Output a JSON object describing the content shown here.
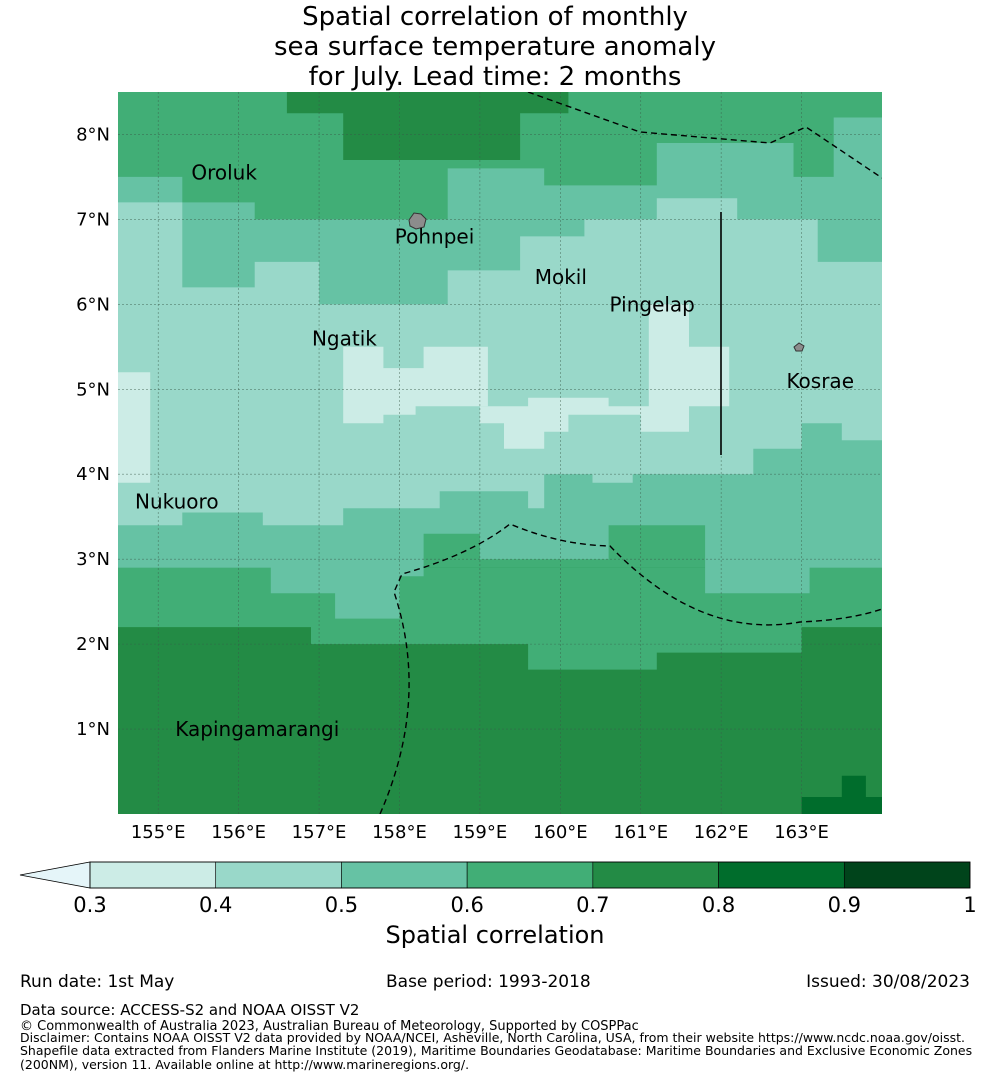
{
  "title_lines": [
    "Spatial correlation of monthly",
    "sea surface temperature anomaly",
    "for July. Lead time: 2 months"
  ],
  "map": {
    "lon_range": [
      154.5,
      164.0
    ],
    "lat_range": [
      0.0,
      8.5
    ],
    "lat_ticks": [
      {
        "v": 8,
        "label": "8°N"
      },
      {
        "v": 7,
        "label": "7°N"
      },
      {
        "v": 6,
        "label": "6°N"
      },
      {
        "v": 5,
        "label": "5°N"
      },
      {
        "v": 4,
        "label": "4°N"
      },
      {
        "v": 3,
        "label": "3°N"
      },
      {
        "v": 2,
        "label": "2°N"
      },
      {
        "v": 1,
        "label": "1°N"
      }
    ],
    "lon_ticks": [
      {
        "v": 155,
        "label": "155°E"
      },
      {
        "v": 156,
        "label": "156°E"
      },
      {
        "v": 157,
        "label": "157°E"
      },
      {
        "v": 158,
        "label": "158°E"
      },
      {
        "v": 159,
        "label": "159°E"
      },
      {
        "v": 160,
        "label": "160°E"
      },
      {
        "v": 161,
        "label": "161°E"
      },
      {
        "v": 162,
        "label": "162°E"
      },
      {
        "v": 163,
        "label": "163°E"
      }
    ],
    "colors": [
      "#e5f5f9",
      "#ccece6",
      "#99d8c9",
      "#66c2a4",
      "#41ae76",
      "#238b45",
      "#006d2c",
      "#00441b"
    ],
    "field_rows": [
      "5555588888855577777788888888888888888888888888888888888888888888888888888888888777777777777777777777777777777777777777555555555555555555555555555555555555555555555555555555555555555555555555555555555555555555555555555555555555555555555555555555555555555555555555555555555555555555555555555555555555555555555555555555555555555555555555555555555"
    ],
    "places": [
      {
        "name": "Oroluk",
        "lon": 155.3,
        "lat": 7.55
      },
      {
        "name": "Pohnpei",
        "lon": 157.83,
        "lat": 6.8
      },
      {
        "name": "Mokil",
        "lon": 159.57,
        "lat": 6.32
      },
      {
        "name": "Pingelap",
        "lon": 160.5,
        "lat": 6.0
      },
      {
        "name": "Ngatik",
        "lon": 156.8,
        "lat": 5.6
      },
      {
        "name": "Kosrae",
        "lon": 162.7,
        "lat": 5.1
      },
      {
        "name": "Nukuoro",
        "lon": 154.6,
        "lat": 3.68
      },
      {
        "name": "Kapingamarangi",
        "lon": 155.1,
        "lat": 1.0
      }
    ]
  },
  "colorbar": {
    "ticks": [
      "0.3",
      "0.4",
      "0.5",
      "0.6",
      "0.7",
      "0.8",
      "0.9",
      "1"
    ],
    "extend_color": "#e5f5f9",
    "colors": [
      "#ccece6",
      "#99d8c9",
      "#66c2a4",
      "#41ae76",
      "#238b45",
      "#006d2c",
      "#00441b"
    ],
    "label": "Spatial correlation"
  },
  "footer": {
    "run_date": "Run date: 1st May",
    "base_period": "Base period: 1993-2018",
    "issued": "Issued: 30/08/2023",
    "data_source": "Data source: ACCESS-S2 and NOAA OISST V2",
    "copyright": "© Commonwealth of Australia 2023, Australian Bureau of Meteorology, Supported by COSPPac",
    "disclaimer": "Disclaimer: Contains NOAA OISST V2 data provided by NOAA/NCEI, Asheville, North Carolina, USA, from their website https://www.ncdc.noaa.gov/oisst.",
    "shapefile": "Shapefile data extracted from Flanders Marine Institute (2019), Maritime Boundaries Geodatabase: Maritime Boundaries and Exclusive Economic Zones (200NM), version 11. Available online at http://www.marineregions.org/."
  }
}
